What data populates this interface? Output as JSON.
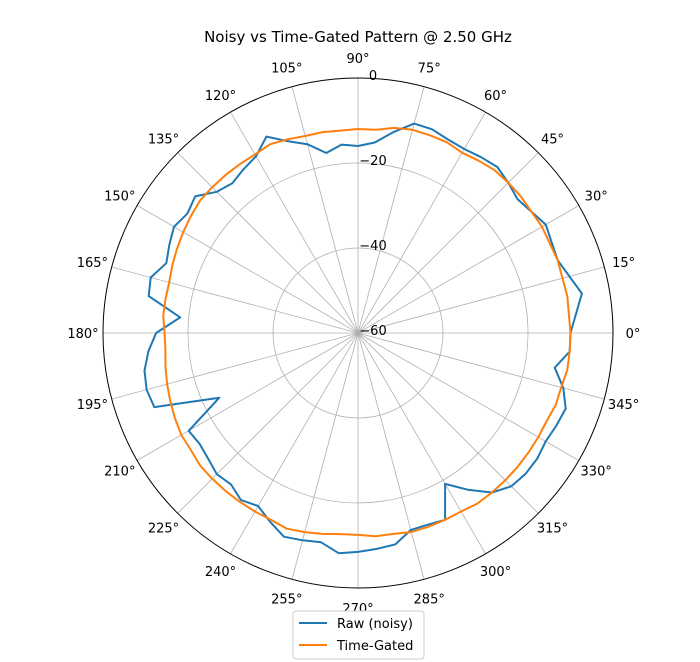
{
  "chart_data": {
    "type": "line",
    "subtype": "polar",
    "title": "Noisy vs Time-Gated Pattern @ 2.50 GHz",
    "angle_unit": "degrees",
    "angle_ticks": [
      0,
      15,
      30,
      45,
      60,
      75,
      90,
      105,
      120,
      135,
      150,
      165,
      180,
      195,
      210,
      225,
      240,
      255,
      270,
      285,
      300,
      315,
      330,
      345
    ],
    "angle_tick_labels": [
      "0°",
      "15°",
      "30°",
      "45°",
      "60°",
      "75°",
      "90°",
      "105°",
      "120°",
      "135°",
      "150°",
      "165°",
      "180°",
      "195°",
      "210°",
      "225°",
      "240°",
      "255°",
      "270°",
      "285°",
      "300°",
      "315°",
      "330°",
      "345°"
    ],
    "radial_ticks": [
      -60,
      -40,
      -20,
      0
    ],
    "radial_tick_labels": [
      "−60",
      "−40",
      "−20",
      "0"
    ],
    "rlim": [
      -60,
      0
    ],
    "grid": true,
    "legend_position": "bottom-center",
    "series": [
      {
        "name": "Raw (noisy)",
        "color": "#1f77b4",
        "theta": [
          0,
          10,
          20,
          30,
          40,
          45,
          50,
          55,
          60,
          65,
          70,
          75,
          80,
          85,
          90,
          95,
          100,
          105,
          110,
          115,
          120,
          125,
          130,
          135,
          140,
          145,
          150,
          155,
          160,
          165,
          170,
          175,
          180,
          185,
          190,
          195,
          200,
          205,
          210,
          215,
          220,
          225,
          230,
          235,
          240,
          245,
          250,
          255,
          260,
          265,
          270,
          275,
          280,
          285,
          290,
          295,
          300,
          305,
          310,
          315,
          320,
          325,
          330,
          335,
          340,
          345,
          350,
          355
        ],
        "r": [
          -10,
          -6.5,
          -10,
          -9,
          -11,
          -10,
          -9,
          -9.5,
          -10,
          -9.8,
          -9,
          -9,
          -12,
          -15,
          -16,
          -15.5,
          -17,
          -14,
          -12,
          -9,
          -12,
          -13,
          -14,
          -13,
          -10,
          -11,
          -10,
          -11,
          -12,
          -9.5,
          -10,
          -18,
          -12.5,
          -10.5,
          -9,
          -8.5,
          -9,
          -24,
          -14,
          -14.5,
          -14,
          -13,
          -13.5,
          -12,
          -13,
          -11,
          -9,
          -9.5,
          -10,
          -8,
          -8.5,
          -9,
          -9.5,
          -12,
          -12,
          -11.5,
          -19,
          -15,
          -11,
          -9,
          -8.5,
          -8.5,
          -9,
          -8.5,
          -8,
          -10,
          -13,
          -10
        ]
      },
      {
        "name": "Time-Gated",
        "color": "#ff7f0e",
        "theta": [
          0,
          10,
          20,
          30,
          40,
          45,
          50,
          55,
          60,
          65,
          70,
          75,
          80,
          85,
          90,
          95,
          100,
          105,
          110,
          115,
          120,
          125,
          130,
          135,
          140,
          145,
          150,
          155,
          160,
          165,
          170,
          175,
          180,
          185,
          190,
          195,
          200,
          205,
          210,
          215,
          220,
          225,
          230,
          235,
          240,
          245,
          250,
          255,
          260,
          265,
          270,
          275,
          280,
          285,
          290,
          295,
          300,
          305,
          310,
          315,
          320,
          325,
          330,
          335,
          340,
          345,
          350,
          355
        ],
        "r": [
          -10,
          -10,
          -10,
          -10,
          -10,
          -10,
          -10,
          -10.5,
          -11,
          -10.5,
          -10.5,
          -10.5,
          -11,
          -12,
          -12,
          -12.2,
          -12,
          -12,
          -11.5,
          -11,
          -11.5,
          -11.5,
          -11.5,
          -11.5,
          -11.5,
          -12,
          -12.5,
          -13,
          -13.5,
          -14,
          -14,
          -14,
          -14.5,
          -14.5,
          -14,
          -13.5,
          -13,
          -12.5,
          -12,
          -12,
          -11.5,
          -11.5,
          -11.5,
          -11.5,
          -11.5,
          -11.5,
          -11,
          -11.5,
          -12,
          -12.5,
          -12.5,
          -12,
          -12,
          -11.5,
          -11.5,
          -11.5,
          -11.5,
          -11,
          -11,
          -11,
          -11,
          -11,
          -11,
          -11,
          -10.5,
          -10.5,
          -10,
          -10
        ]
      }
    ]
  }
}
